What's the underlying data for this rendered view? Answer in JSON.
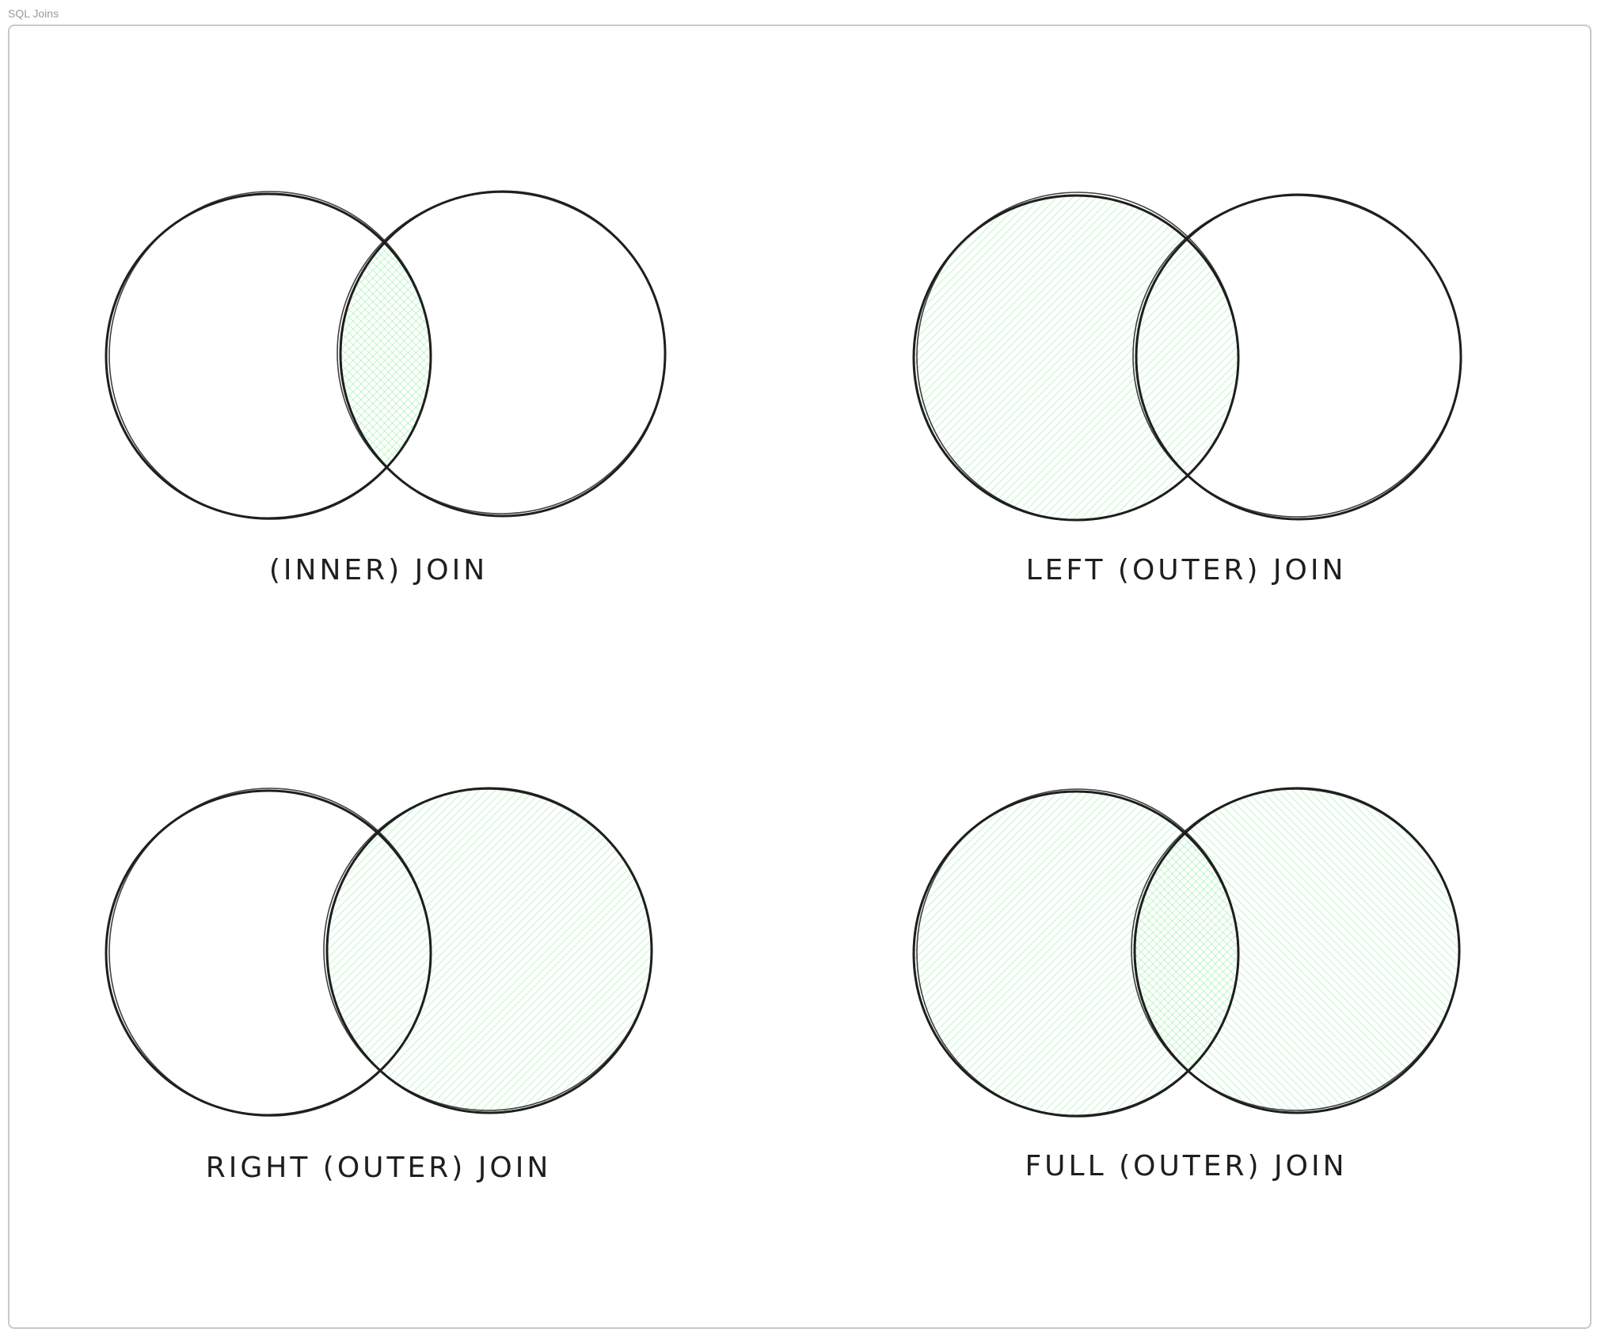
{
  "frame": {
    "title": "SQL Joins"
  },
  "colors": {
    "stroke": "#1e1e1e",
    "fill": "#b2f2bb",
    "frame_border": "#c9c9c9"
  },
  "diagrams": [
    {
      "label": "(INNER) JOIN",
      "highlight": "intersection"
    },
    {
      "label": "LEFT (OUTER) JOIN",
      "highlight": "left"
    },
    {
      "label": "RIGHT (OUTER) JOIN",
      "highlight": "right"
    },
    {
      "label": "FULL (OUTER) JOIN",
      "highlight": "both"
    }
  ]
}
